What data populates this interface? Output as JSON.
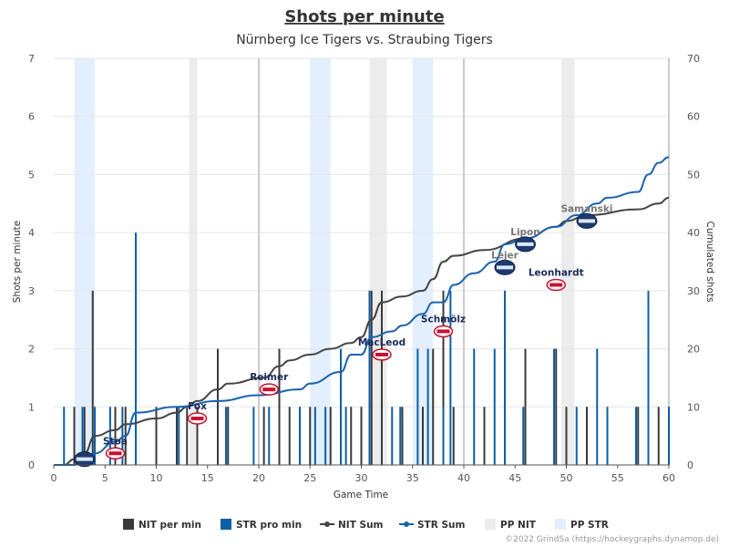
{
  "chart_data": {
    "type": "bar",
    "title": "Shots per minute",
    "subtitle": "Nürnberg Ice Tigers vs. Straubing Tigers",
    "xlabel": "Game Time",
    "ylabel": "Shots per minute",
    "y2label": "Cumulated shots",
    "xlim": [
      0,
      60
    ],
    "ylim": [
      0,
      7
    ],
    "y2lim": [
      0,
      70
    ],
    "xticks": [
      0,
      5,
      10,
      15,
      20,
      25,
      30,
      35,
      40,
      45,
      50,
      55,
      60
    ],
    "yticks": [
      0,
      1,
      2,
      3,
      4,
      5,
      6,
      7
    ],
    "y2ticks": [
      0,
      10,
      20,
      30,
      40,
      50,
      60,
      70
    ],
    "colors": {
      "nit": "#3a3a3a",
      "str": "#0a5fa8",
      "pp_nit": "#ececec",
      "pp_str": "#e3efff",
      "period_line": "#cccccc",
      "nit_player": "#1a2a5a",
      "str_player": "#777777"
    },
    "series": [
      {
        "name": "NIT per min",
        "type": "bar",
        "color": "#3a3a3a",
        "points": [
          [
            2,
            1
          ],
          [
            3,
            1
          ],
          [
            3.8,
            3
          ],
          [
            6,
            1
          ],
          [
            7,
            1
          ],
          [
            10,
            1
          ],
          [
            12,
            1
          ],
          [
            13,
            1
          ],
          [
            14,
            1
          ],
          [
            16,
            2
          ],
          [
            17,
            1
          ],
          [
            20.5,
            1
          ],
          [
            22,
            2
          ],
          [
            23,
            1
          ],
          [
            25,
            1
          ],
          [
            27,
            1
          ],
          [
            29,
            1
          ],
          [
            30,
            1
          ],
          [
            31,
            3
          ],
          [
            32,
            3
          ],
          [
            34,
            1
          ],
          [
            36,
            1
          ],
          [
            37,
            2
          ],
          [
            38,
            3
          ],
          [
            39,
            1
          ],
          [
            42,
            1
          ],
          [
            46,
            2
          ],
          [
            49,
            2
          ],
          [
            50,
            1
          ],
          [
            52,
            1
          ],
          [
            57,
            1
          ],
          [
            59,
            1
          ],
          [
            60,
            1
          ]
        ]
      },
      {
        "name": "STR pro min",
        "type": "bar",
        "color": "#0a5fa8",
        "points": [
          [
            1,
            1
          ],
          [
            2.8,
            1
          ],
          [
            4,
            1
          ],
          [
            5.5,
            1
          ],
          [
            6.7,
            1
          ],
          [
            8,
            4
          ],
          [
            12.2,
            1
          ],
          [
            16.8,
            1
          ],
          [
            19.5,
            1
          ],
          [
            21,
            1
          ],
          [
            24,
            1
          ],
          [
            25.5,
            1
          ],
          [
            26.5,
            1
          ],
          [
            28,
            2
          ],
          [
            28.5,
            1
          ],
          [
            30.8,
            3
          ],
          [
            33,
            1
          ],
          [
            33.8,
            1
          ],
          [
            35.5,
            2
          ],
          [
            36.5,
            2
          ],
          [
            38,
            1
          ],
          [
            38.7,
            3
          ],
          [
            41,
            2
          ],
          [
            43,
            2
          ],
          [
            44,
            3
          ],
          [
            45.8,
            1
          ],
          [
            48.8,
            2
          ],
          [
            51,
            1
          ],
          [
            53,
            2
          ],
          [
            54,
            1
          ],
          [
            56.8,
            1
          ],
          [
            58,
            3
          ],
          [
            60,
            1
          ]
        ]
      },
      {
        "name": "NIT Sum",
        "type": "line",
        "color": "#444444",
        "points": [
          [
            1,
            0
          ],
          [
            2,
            1
          ],
          [
            3,
            2
          ],
          [
            4,
            5
          ],
          [
            6,
            6
          ],
          [
            7,
            7
          ],
          [
            10,
            8
          ],
          [
            12,
            9
          ],
          [
            13,
            10
          ],
          [
            14,
            11
          ],
          [
            16,
            13
          ],
          [
            17,
            14
          ],
          [
            20.5,
            15
          ],
          [
            22,
            17
          ],
          [
            23,
            18
          ],
          [
            25,
            19
          ],
          [
            27,
            20
          ],
          [
            29,
            21
          ],
          [
            30,
            22
          ],
          [
            31,
            25
          ],
          [
            32,
            28
          ],
          [
            34,
            29
          ],
          [
            36,
            30
          ],
          [
            37,
            32
          ],
          [
            38,
            35
          ],
          [
            39,
            36
          ],
          [
            42,
            37
          ],
          [
            46,
            39
          ],
          [
            49,
            41
          ],
          [
            50,
            42
          ],
          [
            52,
            43
          ],
          [
            57,
            44
          ],
          [
            59,
            45
          ],
          [
            60,
            46
          ]
        ]
      },
      {
        "name": "STR Sum",
        "type": "line",
        "color": "#1a63b0",
        "points": [
          [
            0,
            0
          ],
          [
            1,
            0
          ],
          [
            2,
            0
          ],
          [
            3,
            1
          ],
          [
            4,
            2
          ],
          [
            6,
            4
          ],
          [
            7,
            5
          ],
          [
            8,
            9
          ],
          [
            12,
            10
          ],
          [
            16,
            11
          ],
          [
            20,
            12
          ],
          [
            24,
            13
          ],
          [
            25,
            14
          ],
          [
            28,
            16
          ],
          [
            29,
            19
          ],
          [
            30,
            19
          ],
          [
            31,
            22
          ],
          [
            33,
            23
          ],
          [
            34,
            24
          ],
          [
            36,
            26
          ],
          [
            37,
            28
          ],
          [
            38,
            28
          ],
          [
            39,
            31
          ],
          [
            41,
            33
          ],
          [
            43,
            35
          ],
          [
            44,
            38
          ],
          [
            46,
            39
          ],
          [
            49,
            41
          ],
          [
            51,
            43
          ],
          [
            53,
            45
          ],
          [
            54,
            46
          ],
          [
            57,
            47
          ],
          [
            58,
            50
          ],
          [
            59,
            52
          ],
          [
            60,
            53
          ]
        ]
      }
    ],
    "pp_nit": [
      [
        13.2,
        14
      ],
      [
        30.8,
        32.5
      ],
      [
        49.5,
        50.8
      ]
    ],
    "pp_str": [
      [
        2,
        4
      ],
      [
        25,
        27
      ],
      [
        35,
        37
      ]
    ],
    "period_lines": [
      20,
      40,
      60
    ],
    "players": [
      {
        "name": "Stoa",
        "team": "NIT",
        "x": 6,
        "cum": 2
      },
      {
        "name": "Fox",
        "team": "NIT",
        "x": 14,
        "cum": 8
      },
      {
        "name": "Reimer",
        "team": "NIT",
        "x": 21,
        "cum": 13
      },
      {
        "name": "MacLeod",
        "team": "NIT",
        "x": 32,
        "cum": 19
      },
      {
        "name": "Schmölz",
        "team": "NIT",
        "x": 38,
        "cum": 23
      },
      {
        "name": "Leonhardt",
        "team": "NIT",
        "x": 49,
        "cum": 31
      },
      {
        "name": "Lejer",
        "team": "STR",
        "x": 44,
        "cum": 34
      },
      {
        "name": "Lipon",
        "team": "STR",
        "x": 46,
        "cum": 38
      },
      {
        "name": "Samanski",
        "team": "STR",
        "x": 52,
        "cum": 42
      },
      {
        "name": "",
        "team": "STR",
        "x": 3,
        "cum": 1
      }
    ],
    "legend": {
      "placement": "bottom-center",
      "items": [
        {
          "label": "NIT per min",
          "kind": "bar",
          "color": "#3a3a3a"
        },
        {
          "label": "STR pro min",
          "kind": "bar",
          "color": "#0a5fa8"
        },
        {
          "label": "NIT Sum",
          "kind": "line",
          "color": "#444444"
        },
        {
          "label": "STR Sum",
          "kind": "line",
          "color": "#1a63b0"
        },
        {
          "label": "PP NIT",
          "kind": "area",
          "color": "#ececec"
        },
        {
          "label": "PP STR",
          "kind": "area",
          "color": "#e3efff"
        }
      ]
    },
    "credits": "©2022 GrindSa (https://hockeygraphs.dynamop.de)"
  }
}
